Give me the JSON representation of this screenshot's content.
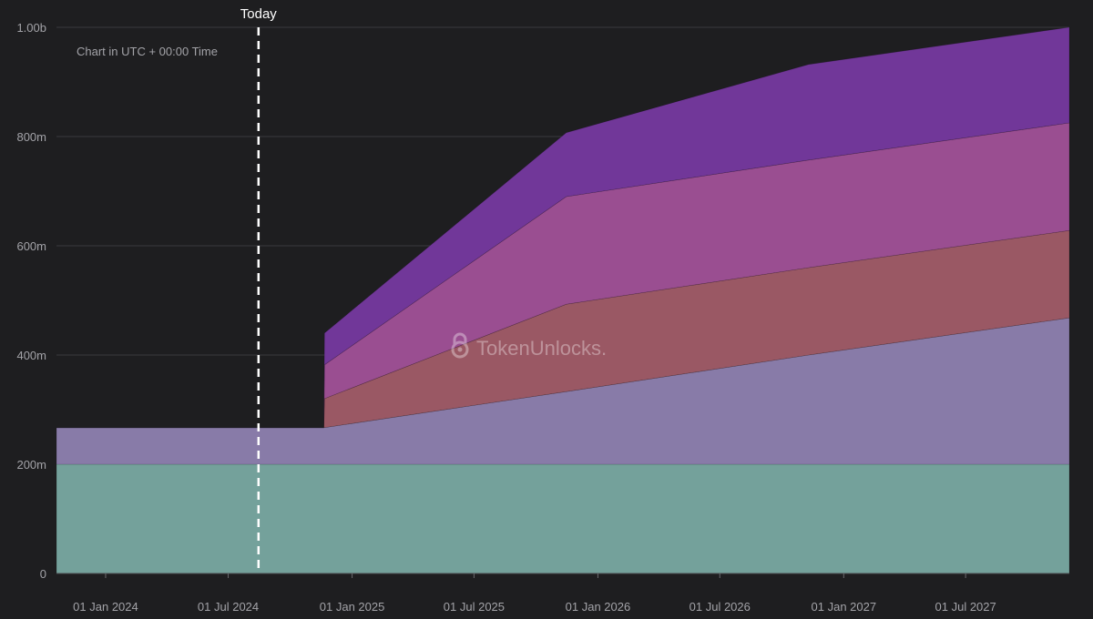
{
  "chart_data": {
    "type": "area",
    "stacked": true,
    "note": "Chart in UTC + 00:00 Time",
    "today_label": "Today",
    "today_date": "2024-08-15",
    "watermark": "TokenUnlocks.",
    "watermark_icon": "lock-icon",
    "x_ticks": [
      {
        "date": "2024-01-01",
        "label": "01 Jan 2024"
      },
      {
        "date": "2024-07-01",
        "label": "01 Jul 2024"
      },
      {
        "date": "2025-01-01",
        "label": "01 Jan 2025"
      },
      {
        "date": "2025-07-01",
        "label": "01 Jul 2025"
      },
      {
        "date": "2026-01-01",
        "label": "01 Jan 2026"
      },
      {
        "date": "2026-07-01",
        "label": "01 Jul 2026"
      },
      {
        "date": "2027-01-01",
        "label": "01 Jan 2027"
      },
      {
        "date": "2027-07-01",
        "label": "01 Jul 2027"
      }
    ],
    "y_ticks": [
      {
        "value": 0,
        "label": "0"
      },
      {
        "value": 200000000,
        "label": "200m"
      },
      {
        "value": 400000000,
        "label": "400m"
      },
      {
        "value": 600000000,
        "label": "600m"
      },
      {
        "value": 800000000,
        "label": "800m"
      },
      {
        "value": 1000000000,
        "label": "1.00b"
      }
    ],
    "xlim": [
      "2023-10-20",
      "2027-12-02"
    ],
    "ylim": [
      0,
      1000000000
    ],
    "grid": true,
    "series": [
      {
        "color": "#74a19b",
        "points": [
          [
            "2023-10-20",
            200000000
          ],
          [
            "2027-12-02",
            200000000
          ]
        ]
      },
      {
        "color": "#887ba8",
        "points": [
          [
            "2023-10-20",
            67000000
          ],
          [
            "2024-11-20",
            67000000
          ],
          [
            "2025-11-15",
            133000000
          ],
          [
            "2026-11-10",
            200000000
          ],
          [
            "2027-12-02",
            268000000
          ]
        ]
      },
      {
        "color": "#9a5864",
        "points": [
          [
            "2024-11-20",
            0
          ],
          [
            "2024-11-21",
            53000000
          ],
          [
            "2025-11-15",
            160000000
          ],
          [
            "2026-11-10",
            160000000
          ],
          [
            "2027-12-02",
            160000000
          ]
        ]
      },
      {
        "color": "#9a4e91",
        "points": [
          [
            "2024-11-20",
            0
          ],
          [
            "2024-11-21",
            62000000
          ],
          [
            "2025-11-15",
            197000000
          ],
          [
            "2026-11-10",
            197000000
          ],
          [
            "2027-12-02",
            197000000
          ]
        ]
      },
      {
        "color": "#713799",
        "points": [
          [
            "2024-11-20",
            0
          ],
          [
            "2024-11-21",
            58000000
          ],
          [
            "2025-11-15",
            117000000
          ],
          [
            "2026-11-10",
            175000000
          ],
          [
            "2027-12-02",
            175000000
          ]
        ]
      }
    ]
  }
}
